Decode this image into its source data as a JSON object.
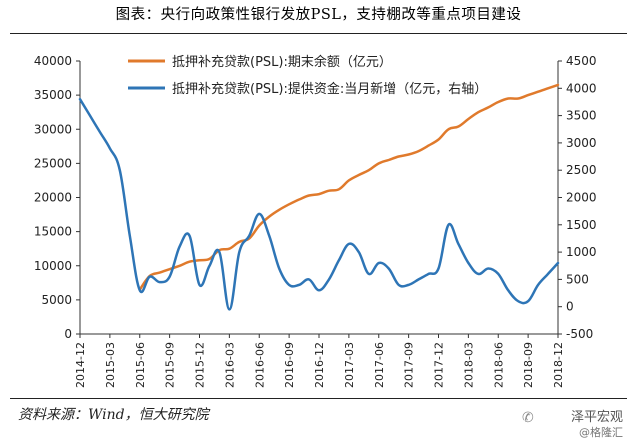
{
  "header": {
    "title": "图表：央行向政策性银行发放PSL，支持棚改等重点项目建设"
  },
  "footer": {
    "source": "资料来源：Wind，恒大研究院",
    "watermark_title": "泽平宏观",
    "watermark_sub": "@格隆汇"
  },
  "chart_data": {
    "type": "line",
    "title": "",
    "x_tick_labels": [
      "2014-12",
      "2015-03",
      "2015-06",
      "2015-09",
      "2015-12",
      "2016-03",
      "2016-06",
      "2016-09",
      "2016-12",
      "2017-03",
      "2017-06",
      "2017-09",
      "2017-12",
      "2018-03",
      "2018-06",
      "2018-09",
      "2018-12"
    ],
    "y_left": {
      "min": 0,
      "max": 40000,
      "step": 5000,
      "tick_labels": [
        "0",
        "5000",
        "10000",
        "15000",
        "20000",
        "25000",
        "30000",
        "35000",
        "40000"
      ]
    },
    "y_right": {
      "min": -500,
      "max": 4500,
      "step": 500,
      "tick_labels": [
        "-500",
        "0",
        "500",
        "1000",
        "1500",
        "2000",
        "2500",
        "3000",
        "3500",
        "4000",
        "4500"
      ]
    },
    "legend_position": "top-right",
    "series": [
      {
        "name": "抵押补充贷款(PSL):期末余额（亿元）",
        "axis": "left",
        "color": "#E07A2C",
        "x": [
          "2015-06",
          "2015-07",
          "2015-08",
          "2015-09",
          "2015-10",
          "2015-11",
          "2015-12",
          "2016-01",
          "2016-02",
          "2016-03",
          "2016-04",
          "2016-05",
          "2016-06",
          "2016-07",
          "2016-08",
          "2016-09",
          "2016-10",
          "2016-11",
          "2016-12",
          "2017-01",
          "2017-02",
          "2017-03",
          "2017-04",
          "2017-05",
          "2017-06",
          "2017-07",
          "2017-08",
          "2017-09",
          "2017-10",
          "2017-11",
          "2017-12",
          "2018-01",
          "2018-02",
          "2018-03",
          "2018-04",
          "2018-05",
          "2018-06",
          "2018-07",
          "2018-08",
          "2018-09",
          "2018-10",
          "2018-11",
          "2018-12"
        ],
        "values": [
          6500,
          8500,
          9000,
          9500,
          10000,
          10600,
          10800,
          11000,
          12300,
          12500,
          13500,
          14000,
          15900,
          17200,
          18200,
          19000,
          19700,
          20300,
          20500,
          21000,
          21200,
          22500,
          23300,
          24000,
          25000,
          25500,
          26000,
          26300,
          26800,
          27600,
          28500,
          30000,
          30400,
          31500,
          32500,
          33200,
          34000,
          34500,
          34500,
          35000,
          35500,
          36000,
          36500
        ]
      },
      {
        "name": "抵押补充贷款(PSL):提供资金:当月新增（亿元，右轴）",
        "axis": "right",
        "color": "#2E75B6",
        "x": [
          "2014-12",
          "2015-01",
          "2015-02",
          "2015-03",
          "2015-04",
          "2015-05",
          "2015-06",
          "2015-07",
          "2015-08",
          "2015-09",
          "2015-10",
          "2015-11",
          "2015-12",
          "2016-01",
          "2016-02",
          "2016-03",
          "2016-04",
          "2016-05",
          "2016-06",
          "2016-07",
          "2016-08",
          "2016-09",
          "2016-10",
          "2016-11",
          "2016-12",
          "2017-01",
          "2017-02",
          "2017-03",
          "2017-04",
          "2017-05",
          "2017-06",
          "2017-07",
          "2017-08",
          "2017-09",
          "2017-10",
          "2017-11",
          "2017-12",
          "2018-01",
          "2018-02",
          "2018-03",
          "2018-04",
          "2018-05",
          "2018-06",
          "2018-07",
          "2018-08",
          "2018-09",
          "2018-10",
          "2018-11",
          "2018-12"
        ],
        "values": [
          3800,
          3500,
          3200,
          2900,
          2500,
          1300,
          300,
          550,
          450,
          550,
          1100,
          1300,
          400,
          750,
          1000,
          -50,
          1000,
          1300,
          1700,
          1300,
          700,
          400,
          400,
          500,
          300,
          500,
          850,
          1150,
          1000,
          600,
          800,
          700,
          400,
          400,
          500,
          600,
          700,
          1500,
          1150,
          800,
          600,
          700,
          600,
          300,
          100,
          100,
          400,
          600,
          800
        ]
      }
    ]
  }
}
